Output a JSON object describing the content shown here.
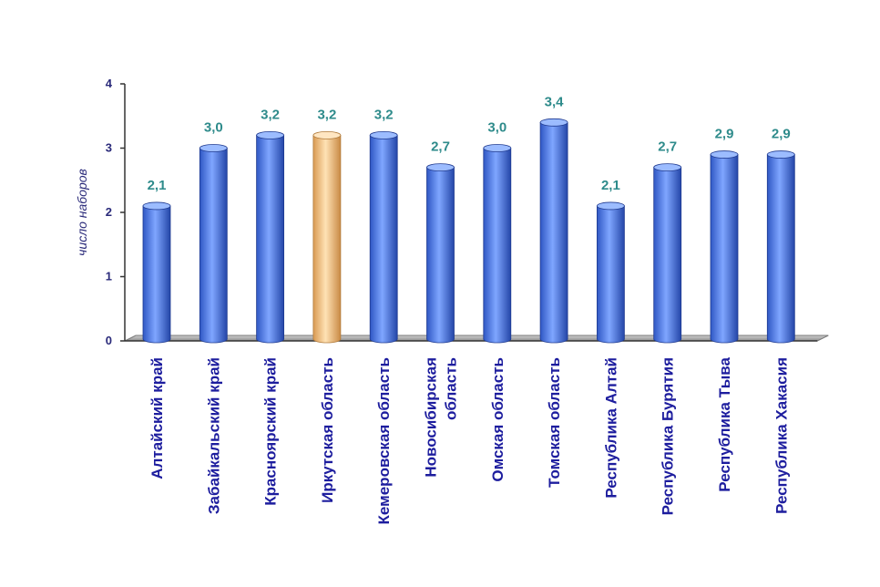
{
  "chart_data": {
    "type": "bar",
    "title": "",
    "xlabel": "",
    "ylabel": "число наборов",
    "ylim": [
      0,
      4
    ],
    "yticks": [
      0,
      1,
      2,
      3,
      4
    ],
    "grid": false,
    "categories": [
      [
        "Алтайский край"
      ],
      [
        "Забайкальский край"
      ],
      [
        "Красноярский край"
      ],
      [
        "Иркутская область"
      ],
      [
        "Кемеровская область"
      ],
      [
        "Новосибирская",
        "область"
      ],
      [
        "Омская область"
      ],
      [
        "Томская область"
      ],
      [
        "Республика Алтай"
      ],
      [
        "Республика Бурятия"
      ],
      [
        "Республика Тыва"
      ],
      [
        "Республика Хакасия"
      ]
    ],
    "values": [
      2.1,
      3.0,
      3.2,
      3.2,
      3.2,
      2.7,
      3.0,
      3.4,
      2.1,
      2.7,
      2.9,
      2.9
    ],
    "value_labels": [
      "2,1",
      "3,0",
      "3,2",
      "3,2",
      "3,2",
      "2,7",
      "3,0",
      "3,4",
      "2,1",
      "2,7",
      "2,9",
      "2,9"
    ],
    "highlight_index": 3,
    "colors": {
      "bar": "#4f7fe8",
      "bar_highlight": "#f6c88c",
      "axis": "#333333",
      "floor": "#a9a9a9",
      "tick_text": "#2a2a7a",
      "value_text": "#2e8b8b",
      "category_text": "#1d1d9e"
    }
  }
}
